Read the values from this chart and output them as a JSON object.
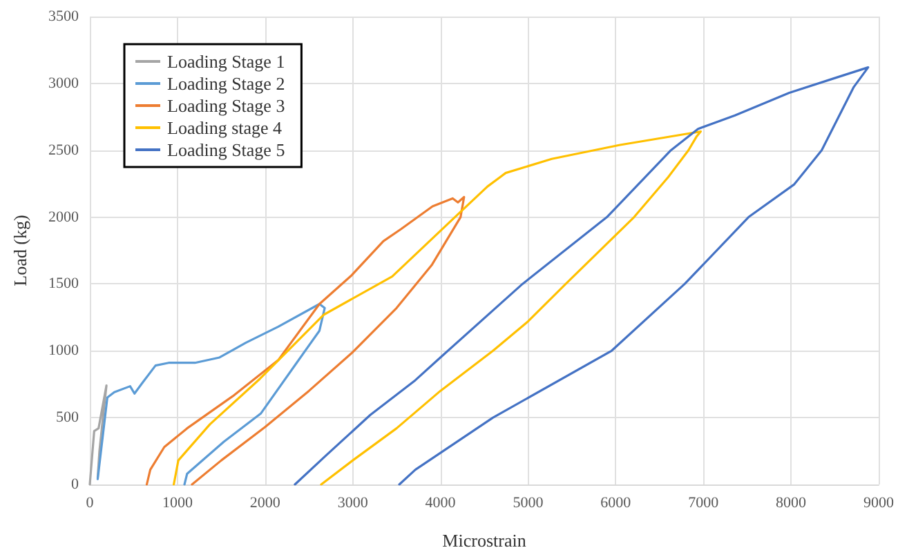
{
  "chart_data": {
    "type": "line",
    "xlabel": "Microstrain",
    "ylabel": "Load (kg)",
    "xlim": [
      0,
      9000
    ],
    "xticks": [
      0,
      1000,
      2000,
      3000,
      4000,
      5000,
      6000,
      7000,
      8000,
      9000
    ],
    "ylim": [
      0,
      3500
    ],
    "yticks": [
      0,
      500,
      1000,
      1500,
      2000,
      2500,
      3000,
      3500
    ],
    "grid": true,
    "legend": "top left",
    "marker": "none",
    "line_style": "solid",
    "series": [
      {
        "name": "Loading Stage 1",
        "color": "#a5a5a5",
        "x": [
          0,
          50,
          100,
          190,
          150,
          110,
          90
        ],
        "values": [
          0,
          400,
          420,
          740,
          500,
          250,
          50
        ]
      },
      {
        "name": "Loading Stage 2",
        "color": "#5b9bd5",
        "x": [
          90,
          200,
          280,
          460,
          510,
          600,
          750,
          900,
          1200,
          1480,
          1780,
          2150,
          2620,
          2680,
          2620,
          2360,
          1950,
          1530,
          1110,
          1080
        ],
        "values": [
          40,
          650,
          690,
          735,
          680,
          760,
          890,
          910,
          910,
          950,
          1060,
          1180,
          1350,
          1320,
          1150,
          910,
          530,
          320,
          80,
          0
        ]
      },
      {
        "name": "Loading Stage 3",
        "color": "#ed7d31",
        "x": [
          650,
          690,
          850,
          1110,
          1630,
          2150,
          2620,
          2980,
          3350,
          3550,
          3910,
          4140,
          4200,
          4270,
          4230,
          3900,
          3500,
          3000,
          2500,
          2000,
          1500,
          1166
        ],
        "values": [
          0,
          110,
          280,
          420,
          660,
          930,
          1350,
          1560,
          1820,
          1910,
          2080,
          2140,
          2110,
          2150,
          2000,
          1640,
          1320,
          990,
          700,
          430,
          180,
          0
        ]
      },
      {
        "name": "Loading stage 4",
        "color": "#ffc000",
        "x": [
          958,
          1010,
          1370,
          1940,
          2670,
          3450,
          4174,
          4536,
          4745,
          5270,
          6050,
          6830,
          6970,
          6920,
          6830,
          6600,
          6210,
          5430,
          5000,
          4600,
          4000,
          3500,
          3000,
          2640
        ],
        "values": [
          0,
          180,
          450,
          790,
          1270,
          1556,
          2005,
          2228,
          2330,
          2435,
          2540,
          2625,
          2640,
          2600,
          2500,
          2300,
          2000,
          1500,
          1220,
          1000,
          700,
          420,
          180,
          0
        ]
      },
      {
        "name": "Loading Stage 5",
        "color": "#4472c4",
        "x": [
          2340,
          2700,
          3200,
          3714,
          4000,
          4937,
          5900,
          6630,
          6940,
          7360,
          7980,
          8500,
          8880,
          8713,
          8350,
          8037,
          7516,
          6787,
          5953,
          4600,
          3714,
          3531
        ],
        "values": [
          0,
          220,
          520,
          780,
          950,
          1500,
          2000,
          2500,
          2660,
          2760,
          2930,
          3040,
          3120,
          2970,
          2500,
          2245,
          2000,
          1500,
          1000,
          500,
          110,
          0
        ]
      }
    ]
  }
}
